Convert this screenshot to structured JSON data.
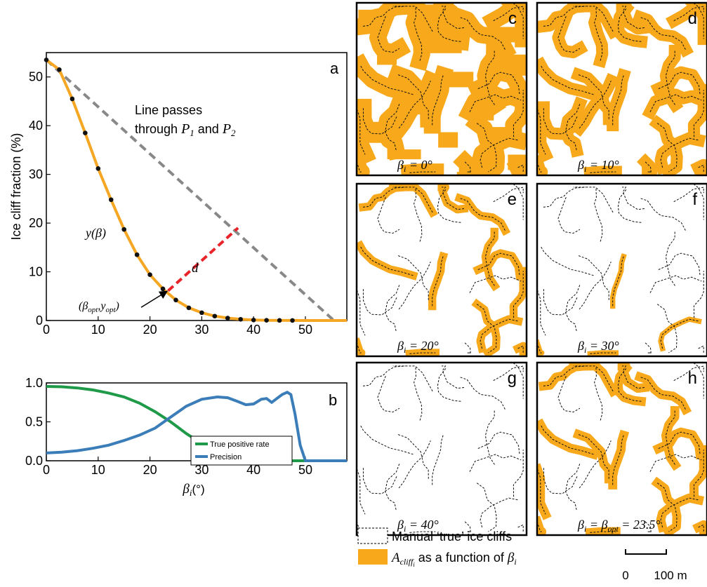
{
  "chart_data": [
    {
      "panel": "a",
      "type": "line",
      "ylabel": "Ice cliff fraction (%)",
      "xlim": [
        0,
        58
      ],
      "ylim": [
        0,
        55
      ],
      "xticks": [
        0,
        10,
        20,
        30,
        40,
        50
      ],
      "yticks": [
        0,
        10,
        20,
        30,
        40,
        50
      ],
      "curve_color": "#f5a623",
      "marker_color": "#111111",
      "chord_color": "#888888",
      "distance_color": "#e8242a",
      "series": [
        {
          "x": [
            0,
            2.5,
            5,
            7.5,
            10,
            12.5,
            15,
            17.5,
            20,
            22.5,
            25,
            27.5,
            30,
            32.5,
            35,
            37.5,
            40,
            42.5,
            45,
            47.5,
            50,
            58
          ],
          "values": [
            53.5,
            51.5,
            45.5,
            38.5,
            31.2,
            24.8,
            18.7,
            13.5,
            9.4,
            6.5,
            4.2,
            2.6,
            1.6,
            0.9,
            0.5,
            0.25,
            0.1,
            0.05,
            0.02,
            0.01,
            0,
            0
          ]
        }
      ],
      "markers_x": [
        0,
        2.5,
        5,
        7.5,
        10,
        12.5,
        15,
        17.5,
        20,
        22.5,
        25,
        27.5,
        30,
        32.5,
        35,
        37.5,
        40,
        42.5,
        45,
        47.5
      ],
      "chord": {
        "x": [
          0,
          55.5
        ],
        "y": [
          53.5,
          0
        ]
      },
      "distance": {
        "x": [
          23.5,
          37
        ],
        "y": [
          6.1,
          19
        ]
      },
      "arrow": {
        "from": [
          18.3,
          2.7
        ],
        "to": [
          23.3,
          6
        ]
      },
      "annotations": {
        "panel_label": "a",
        "line_text_1": "Line passes",
        "line_text_2_pre": "through ",
        "p1": "P",
        "p1_sub": "1",
        "and": " and ",
        "p2": "P",
        "p2_sub": "2",
        "curve_label": "y(β)",
        "distance_label": "d",
        "opt_label_open": "(β",
        "opt_sub_1": "opt",
        "opt_comma": ",y",
        "opt_sub_2": "opt",
        "opt_label_close": ")"
      }
    },
    {
      "panel": "b",
      "type": "line",
      "xlabel_main": "β",
      "xlabel_sub": "i",
      "xlabel_unit": "(°)",
      "xlim": [
        0,
        58
      ],
      "ylim": [
        0,
        1
      ],
      "xticks": [
        0,
        10,
        20,
        30,
        40,
        50
      ],
      "yticks": [
        0.0,
        0.5,
        1.0
      ],
      "ytick_labels": [
        "0.0",
        "0.5",
        "1.0"
      ],
      "panel_label": "b",
      "series": [
        {
          "name": "True positive rate",
          "color": "#1f9a48",
          "x": [
            0,
            3,
            6,
            9,
            12,
            15,
            18,
            21,
            24,
            27,
            30,
            33,
            36,
            38,
            40,
            43,
            46,
            50,
            58
          ],
          "values": [
            0.955,
            0.95,
            0.935,
            0.91,
            0.87,
            0.82,
            0.74,
            0.63,
            0.5,
            0.35,
            0.22,
            0.12,
            0.04,
            0.015,
            0.005,
            0,
            0,
            0,
            0
          ]
        },
        {
          "name": "Precision",
          "color": "#3b7db8",
          "x": [
            0,
            3,
            6,
            9,
            12,
            15,
            18,
            21,
            24,
            27,
            30,
            33,
            35,
            37,
            38.5,
            40,
            41.5,
            42.5,
            43.5,
            44.5,
            45.5,
            46.5,
            47.2,
            48,
            49,
            50,
            58
          ],
          "values": [
            0.1,
            0.11,
            0.13,
            0.16,
            0.2,
            0.26,
            0.33,
            0.42,
            0.56,
            0.7,
            0.79,
            0.82,
            0.81,
            0.76,
            0.72,
            0.73,
            0.79,
            0.8,
            0.75,
            0.8,
            0.85,
            0.88,
            0.85,
            0.6,
            0.2,
            0,
            0
          ]
        }
      ]
    }
  ],
  "maps": [
    {
      "label": "c",
      "caption_main": "β",
      "caption_sub": "i",
      "caption_rest": " = 0°"
    },
    {
      "label": "d",
      "caption_main": "β",
      "caption_sub": "i",
      "caption_rest": " = 10°"
    },
    {
      "label": "e",
      "caption_main": "β",
      "caption_sub": "i",
      "caption_rest": " = 20°"
    },
    {
      "label": "f",
      "caption_main": "β",
      "caption_sub": "i",
      "caption_rest": " = 30°"
    },
    {
      "label": "g",
      "caption_main": "β",
      "caption_sub": "i",
      "caption_rest": " = 40°"
    },
    {
      "label": "h",
      "caption_main": "β",
      "caption_sub": "i",
      "caption_rest": " = β",
      "caption_sub2": "opt",
      "caption_tail": " = 23.5°"
    }
  ],
  "map_legend": {
    "manual_label": "Manual ‘true’ ice cliffs",
    "area_main": "A",
    "area_sub": "cliff",
    "area_subsub": "i",
    "area_rest": " as a function of ",
    "area_beta": "β",
    "area_beta_sub": "i",
    "fill_color": "#f7a81b"
  },
  "scalebar": {
    "zero": "0",
    "label": "100 m"
  },
  "cliff_fraction_per_map": [
    1.0,
    0.62,
    0.3,
    0.08,
    0.0,
    0.38
  ]
}
